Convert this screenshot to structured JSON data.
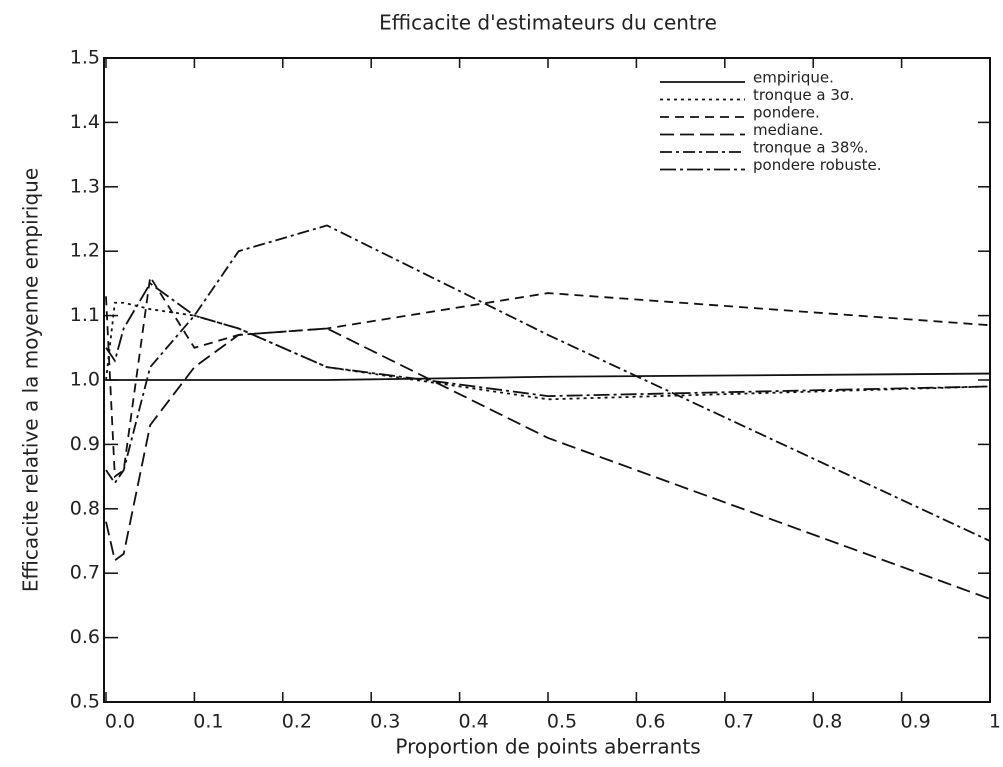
{
  "chart_data": {
    "type": "line",
    "title": "Efficacite d'estimateurs du centre",
    "x_label": "Proportion de points aberrants",
    "y_label": "Efficacite relative a la moyenne empirique",
    "x": [
      0,
      0.01,
      0.02,
      0.05,
      0.1,
      0.15,
      0.25,
      0.5,
      1
    ],
    "series": [
      {
        "name": "empirique.",
        "color": "#111111",
        "dash": "none",
        "values": [
          1.0,
          1.0,
          1.0,
          1.0,
          1.0,
          1.0,
          1.0,
          1.005,
          1.01
        ]
      },
      {
        "name": "tronque a 3σ.",
        "color": "#111111",
        "dash": "3 4",
        "values": [
          1.0,
          1.12,
          1.12,
          1.11,
          1.1,
          1.08,
          1.02,
          0.97,
          0.99
        ]
      },
      {
        "name": "pondere.",
        "color": "#111111",
        "dash": "9 6",
        "values": [
          1.13,
          0.85,
          0.86,
          1.16,
          1.05,
          1.07,
          1.08,
          1.135,
          1.085
        ]
      },
      {
        "name": "mediane.",
        "color": "#111111",
        "dash": "14 6",
        "values": [
          0.78,
          0.72,
          0.73,
          0.93,
          1.02,
          1.07,
          1.08,
          0.91,
          0.66
        ]
      },
      {
        "name": "tronque a 38%.",
        "color": "#111111",
        "dash": "12 4 3 4",
        "values": [
          0.86,
          0.84,
          0.86,
          1.02,
          1.1,
          1.2,
          1.24,
          1.07,
          0.75
        ]
      },
      {
        "name": "pondere robuste.",
        "color": "#111111",
        "dash": "16 4 3 4",
        "values": [
          1.05,
          1.03,
          1.08,
          1.15,
          1.1,
          1.08,
          1.02,
          0.975,
          0.99
        ]
      }
    ],
    "xlim": [
      0,
      1
    ],
    "xticks": [
      {
        "value": 0,
        "label": "0.0"
      },
      0.1,
      0.2,
      0.3,
      0.4,
      0.5,
      0.6,
      0.7,
      0.8,
      0.9,
      {
        "value": 1,
        "label": "1.0"
      }
    ],
    "ylim": [
      0.5,
      1.5
    ],
    "yticks": [
      0.5,
      0.6,
      0.7,
      0.8,
      0.9,
      {
        "value": 1,
        "label": "1.0"
      },
      1.1,
      1.2,
      1.3,
      1.4,
      1.5
    ],
    "legend": "upper right",
    "grid": false
  }
}
